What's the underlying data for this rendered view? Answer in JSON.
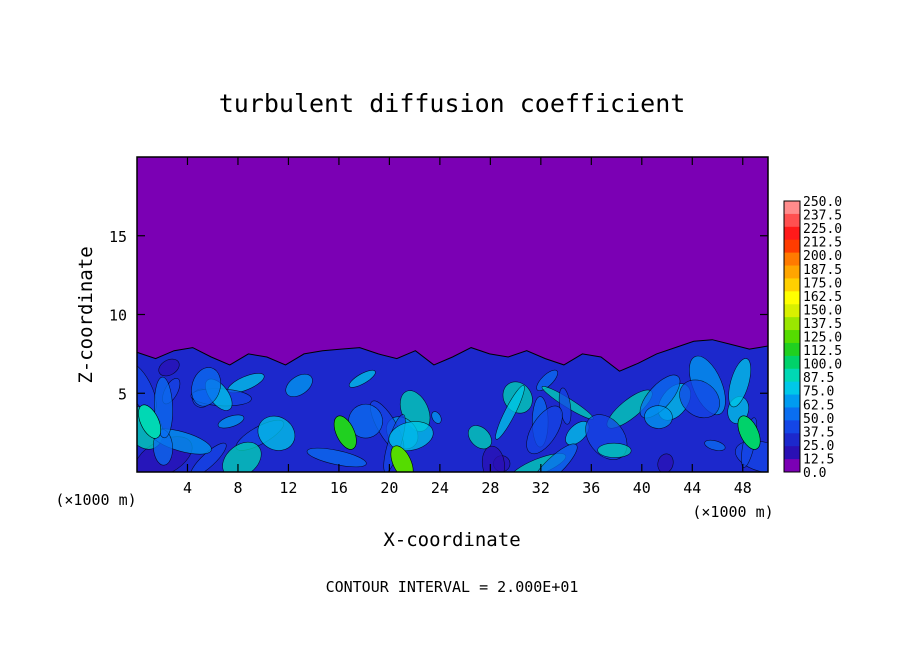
{
  "chart_data": {
    "type": "heatmap",
    "title": "turbulent diffusion coefficient",
    "xlabel": "X-coordinate",
    "ylabel": "Z-coordinate",
    "x_unit_left": "(×1000 m)",
    "x_unit_right": "(×1000 m)",
    "footer": "CONTOUR INTERVAL = 2.000E+01",
    "xlim": [
      0,
      50
    ],
    "ylim": [
      0,
      20
    ],
    "x_ticks": [
      4,
      8,
      12,
      16,
      20,
      24,
      28,
      32,
      36,
      40,
      44,
      48
    ],
    "y_ticks": [
      5,
      10,
      15
    ],
    "turbulent_layer_top": [
      7.6,
      7.2,
      7.7,
      7.9,
      7.3,
      6.8,
      7.5,
      7.3,
      6.8,
      7.5,
      7.7,
      7.8,
      7.9,
      7.5,
      7.2,
      7.7,
      6.8,
      7.3,
      7.9,
      7.5,
      7.3,
      7.7,
      7.2,
      6.8,
      7.5,
      7.3,
      6.4,
      6.9,
      7.5,
      7.9,
      8.3,
      8.4,
      8.1,
      7.8,
      8.0
    ],
    "colorbar": {
      "labels": [
        "250.0",
        "237.5",
        "225.0",
        "212.5",
        "200.0",
        "187.5",
        "175.0",
        "162.5",
        "150.0",
        "137.5",
        "125.0",
        "112.5",
        "100.0",
        "87.5",
        "75.0",
        "62.5",
        "50.0",
        "37.5",
        "25.0",
        "12.5",
        "0.0"
      ],
      "colors": [
        "#ff8c8c",
        "#ff5050",
        "#ff1a1a",
        "#ff3c00",
        "#ff7a00",
        "#ffa500",
        "#ffd000",
        "#ffff00",
        "#d8f000",
        "#9ae600",
        "#55dc00",
        "#20d020",
        "#00d26a",
        "#00d8b4",
        "#00c8e8",
        "#009bf0",
        "#0a6ef0",
        "#1446e6",
        "#1c28cc",
        "#2a10b4",
        "#7b00b4"
      ]
    }
  }
}
